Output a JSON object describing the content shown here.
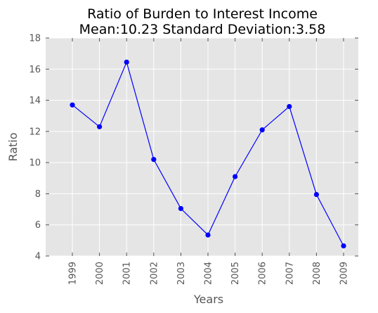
{
  "chart_data": {
    "type": "line",
    "title_line1": "Ratio of Burden to Interest Income",
    "title_line2": "Mean:10.23 Standard Deviation:3.58",
    "xlabel": "Years",
    "ylabel": "Ratio",
    "x": [
      "1999",
      "2000",
      "2001",
      "2002",
      "2003",
      "2004",
      "2005",
      "2006",
      "2007",
      "2008",
      "2009"
    ],
    "series": [
      {
        "values": [
          13.7,
          12.3,
          16.45,
          10.2,
          7.05,
          5.35,
          9.1,
          12.1,
          13.6,
          7.95,
          4.65
        ]
      }
    ],
    "ylim": [
      4,
      18
    ],
    "yticks": [
      "4",
      "6",
      "8",
      "10",
      "12",
      "14",
      "16",
      "18"
    ],
    "grid": true,
    "colors": {
      "line": "#0000ff",
      "background": "#e5e5e5",
      "grid": "#ffffff"
    }
  }
}
